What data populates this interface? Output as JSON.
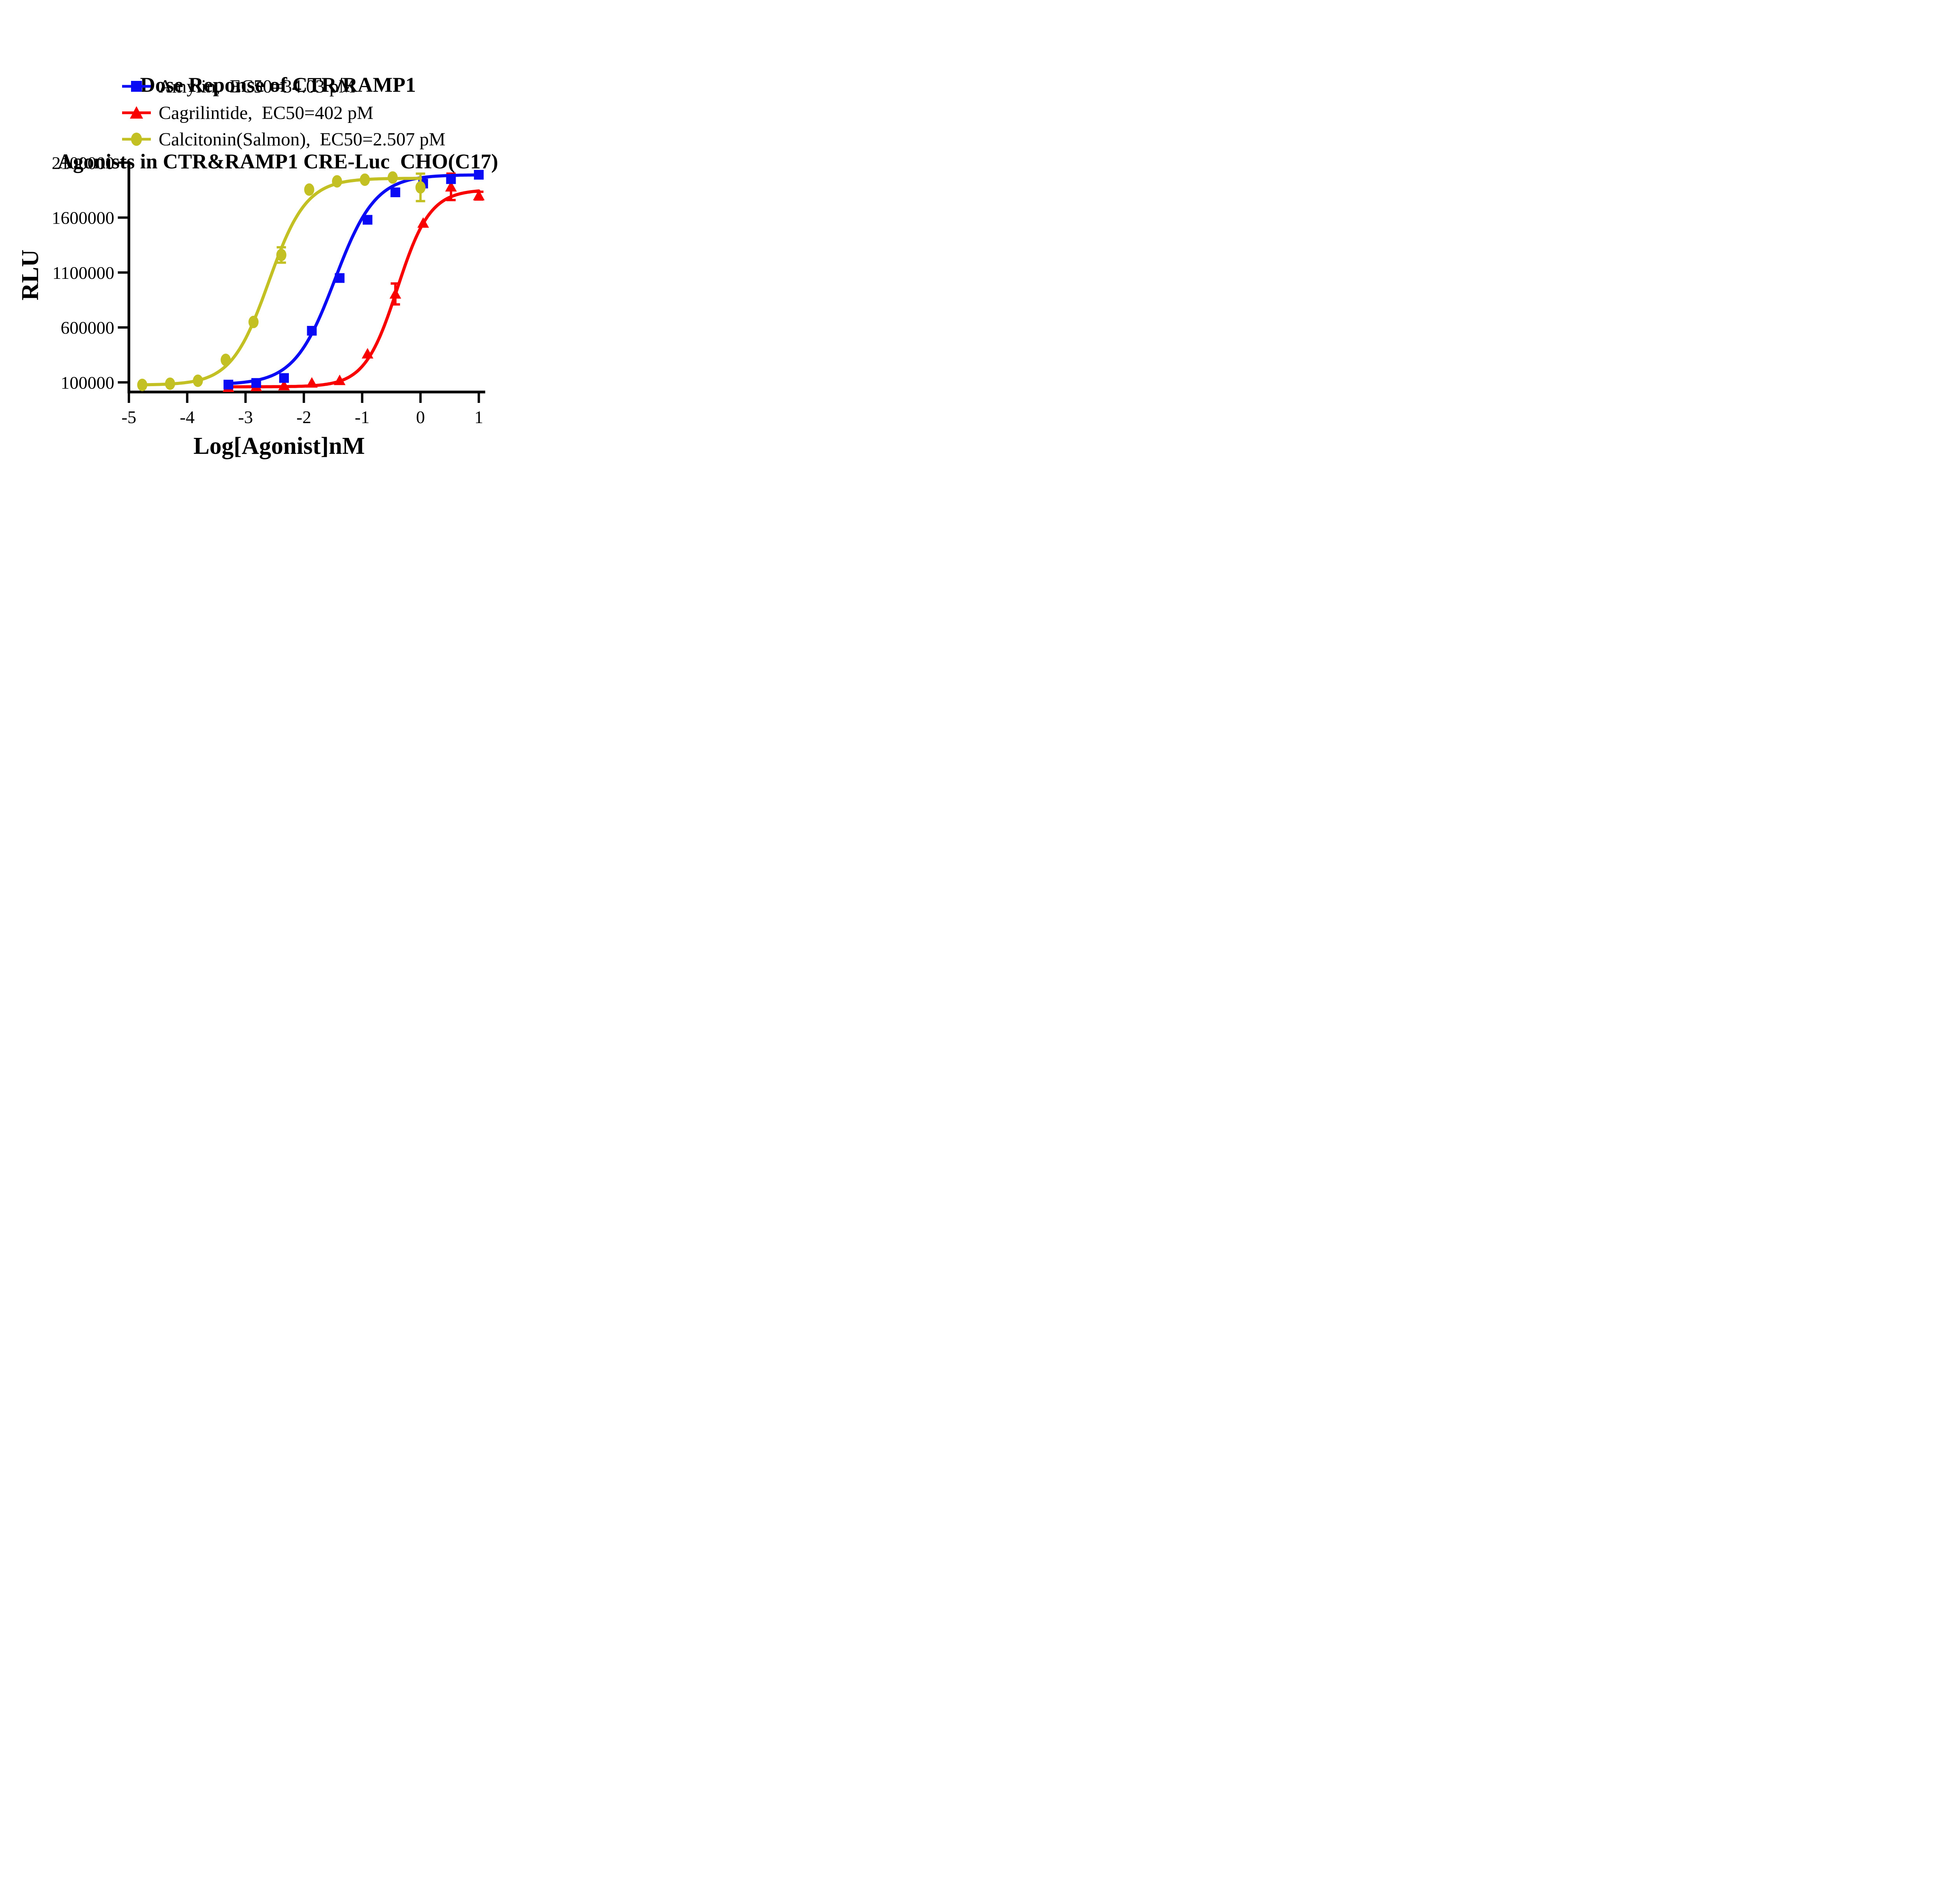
{
  "title": {
    "line1": "Dose Reponse of CTR/RAMP1",
    "line2": "Agonists in CTR&RAMP1 CRE-Luc  CHO(C17)"
  },
  "axes": {
    "x_label": "Log[Agonist]nM",
    "y_label": "RLU"
  },
  "legend": {
    "items": [
      {
        "label": "Amylin,  EC50=34.03 pM",
        "color": "#0a0af5",
        "marker": "square"
      },
      {
        "label": "Cagrilintide,  EC50=402 pM",
        "color": "#f80000",
        "marker": "triangle"
      },
      {
        "label": "Calcitonin(Salmon),  EC50=2.507 pM",
        "color": "#c3c024",
        "marker": "circle"
      }
    ]
  },
  "chart_data": {
    "type": "line",
    "title": "Dose Reponse of CTR/RAMP1 Agonists in CTR&RAMP1 CRE-Luc CHO(C17)",
    "xlabel": "Log[Agonist]nM",
    "ylabel": "RLU",
    "xlim": [
      -5,
      1.15
    ],
    "ylim": [
      12000,
      2100000
    ],
    "x_ticks": [
      -5,
      -4,
      -3,
      -2,
      -1,
      0,
      1
    ],
    "y_ticks": [
      100000,
      600000,
      1100000,
      1600000,
      2100000
    ],
    "grid": false,
    "legend_position": "top-left",
    "series": [
      {
        "name": "Cagrilintide",
        "ec50_label": "EC50=402 pM",
        "color": "#f80000",
        "marker": "triangle",
        "x": [
          -3.294,
          -2.817,
          -2.34,
          -1.863,
          -1.386,
          -0.908,
          -0.431,
          0.046,
          0.523,
          1.0
        ],
        "y": [
          55000,
          62000,
          70000,
          95000,
          118000,
          360000,
          905000,
          1550000,
          1880000,
          1800000
        ],
        "yerr": [
          0,
          0,
          0,
          0,
          0,
          0,
          95000,
          0,
          120000,
          35000
        ],
        "fit": {
          "bottom": 60000,
          "top": 1855000,
          "logEC50": -0.3958,
          "hill": 1.55
        }
      },
      {
        "name": "Amylin",
        "ec50_label": "EC50=34.03 pM",
        "color": "#0a0af5",
        "marker": "square",
        "x": [
          -3.294,
          -2.817,
          -2.34,
          -1.863,
          -1.386,
          -0.908,
          -0.431,
          0.046,
          0.523,
          1.0
        ],
        "y": [
          80000,
          95000,
          140000,
          570000,
          1050000,
          1580000,
          1830000,
          1910000,
          1950000,
          1990000
        ],
        "yerr": [
          0,
          0,
          0,
          0,
          0,
          0,
          0,
          0,
          0,
          0
        ],
        "fit": {
          "bottom": 80000,
          "top": 1990000,
          "logEC50": -1.4681,
          "hill": 1.25
        }
      },
      {
        "name": "Calcitonin(Salmon)",
        "ec50_label": "EC50=2.507 pM",
        "color": "#c3c024",
        "marker": "circle",
        "x": [
          -4.771,
          -4.294,
          -3.817,
          -3.34,
          -2.863,
          -2.386,
          -1.908,
          -1.431,
          -0.954,
          -0.477,
          0.0
        ],
        "y": [
          77000,
          88000,
          115000,
          305000,
          650000,
          1260000,
          1855000,
          1930000,
          1945000,
          1965000,
          1875000
        ],
        "yerr": [
          0,
          0,
          0,
          0,
          0,
          70000,
          0,
          0,
          0,
          0,
          125000
        ],
        "fit": {
          "bottom": 76000,
          "top": 1958000,
          "logEC50": -2.6009,
          "hill": 1.35
        }
      }
    ]
  }
}
